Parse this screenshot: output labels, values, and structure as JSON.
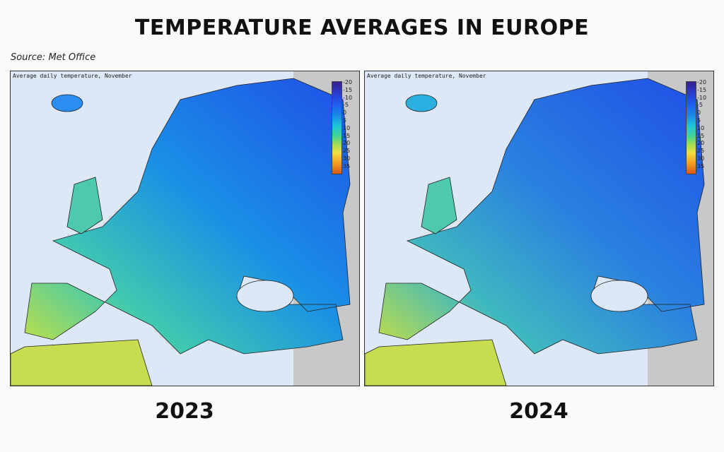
{
  "title": "TEMPERATURE AVERAGES IN EUROPE",
  "source": "Source: Met Office",
  "maps": [
    {
      "year": "2023",
      "panel_title": "Average daily temperature, November"
    },
    {
      "year": "2024",
      "panel_title": "Average daily temperature, November"
    }
  ],
  "legend": {
    "unit_ticks": [
      "-20",
      "-15",
      "-10",
      "-5",
      "0",
      "5",
      "10",
      "15",
      "20",
      "25",
      "30",
      "35"
    ],
    "colors": {
      "cold": "#2a3ad0",
      "mid": "#1fc7d6",
      "warm": "#f0e040",
      "hot": "#d9581a"
    }
  },
  "colors": {
    "sea": "#dde8f7",
    "non_data_land": "#c8c8c8"
  }
}
